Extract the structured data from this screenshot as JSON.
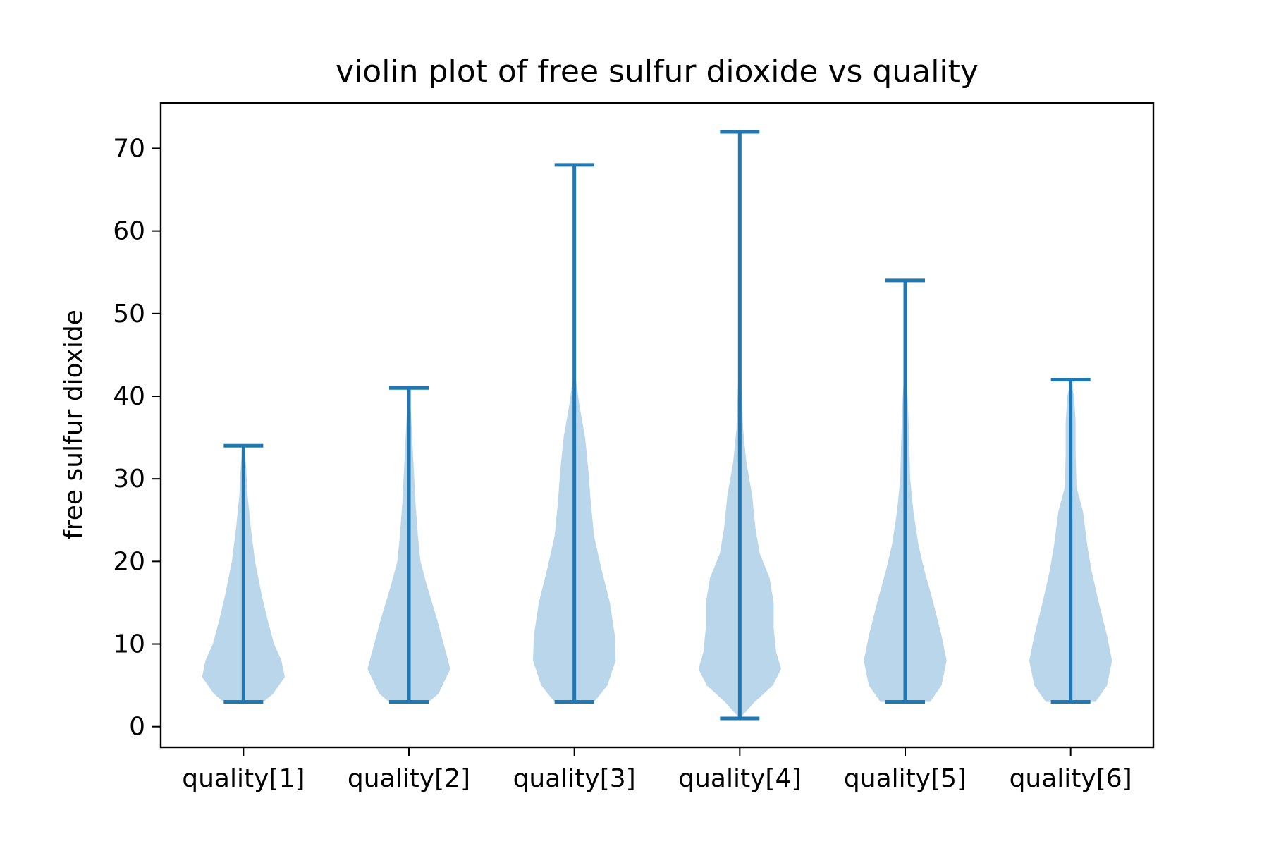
{
  "chart_data": {
    "type": "violin",
    "title": "violin plot of free sulfur dioxide vs quality",
    "xlabel": "",
    "ylabel": "free sulfur dioxide",
    "categories": [
      "quality[1]",
      "quality[2]",
      "quality[3]",
      "quality[4]",
      "quality[5]",
      "quality[6]"
    ],
    "y_ticks": [
      0,
      10,
      20,
      30,
      40,
      50,
      60,
      70
    ],
    "ylim": [
      -2.5,
      75.5
    ],
    "grid": false,
    "legend": "none",
    "colors": {
      "fill": "#bad6ea",
      "line": "#1f77b4",
      "axis": "#000000"
    },
    "violins": [
      {
        "category": "quality[1]",
        "min": 3,
        "max": 34,
        "profile": [
          [
            3,
            0.24
          ],
          [
            4,
            0.36
          ],
          [
            6,
            0.5
          ],
          [
            8,
            0.46
          ],
          [
            10,
            0.37
          ],
          [
            13,
            0.29
          ],
          [
            16,
            0.22
          ],
          [
            20,
            0.14
          ],
          [
            24,
            0.09
          ],
          [
            28,
            0.05
          ],
          [
            31,
            0.035
          ],
          [
            33,
            0.02
          ],
          [
            34,
            0.0
          ]
        ]
      },
      {
        "category": "quality[2]",
        "min": 3,
        "max": 41,
        "profile": [
          [
            3,
            0.24
          ],
          [
            4,
            0.36
          ],
          [
            7,
            0.5
          ],
          [
            10,
            0.42
          ],
          [
            13,
            0.34
          ],
          [
            17,
            0.22
          ],
          [
            20,
            0.14
          ],
          [
            23,
            0.11
          ],
          [
            27,
            0.08
          ],
          [
            31,
            0.06
          ],
          [
            35,
            0.04
          ],
          [
            38,
            0.025
          ],
          [
            41,
            0.0
          ]
        ]
      },
      {
        "category": "quality[3]",
        "min": 3,
        "max": 68,
        "profile": [
          [
            3,
            0.24
          ],
          [
            5,
            0.4
          ],
          [
            8,
            0.5
          ],
          [
            11,
            0.49
          ],
          [
            15,
            0.43
          ],
          [
            19,
            0.33
          ],
          [
            23,
            0.24
          ],
          [
            27,
            0.2
          ],
          [
            31,
            0.17
          ],
          [
            35,
            0.13
          ],
          [
            39,
            0.06
          ],
          [
            42,
            0.02
          ],
          [
            45,
            0.01
          ],
          [
            50,
            0.004
          ],
          [
            68,
            0.0
          ]
        ]
      },
      {
        "category": "quality[4]",
        "min": 1,
        "max": 72,
        "profile": [
          [
            1,
            0.0
          ],
          [
            3,
            0.18
          ],
          [
            5,
            0.4
          ],
          [
            7,
            0.5
          ],
          [
            9,
            0.44
          ],
          [
            12,
            0.41
          ],
          [
            15,
            0.41
          ],
          [
            18,
            0.36
          ],
          [
            21,
            0.24
          ],
          [
            24,
            0.19
          ],
          [
            28,
            0.15
          ],
          [
            32,
            0.08
          ],
          [
            36,
            0.04
          ],
          [
            42,
            0.02
          ],
          [
            48,
            0.005
          ],
          [
            72,
            0.0
          ]
        ]
      },
      {
        "category": "quality[5]",
        "min": 3,
        "max": 54,
        "profile": [
          [
            3,
            0.3
          ],
          [
            5,
            0.44
          ],
          [
            8,
            0.5
          ],
          [
            11,
            0.44
          ],
          [
            15,
            0.34
          ],
          [
            19,
            0.23
          ],
          [
            22,
            0.16
          ],
          [
            26,
            0.1
          ],
          [
            30,
            0.06
          ],
          [
            34,
            0.05
          ],
          [
            37,
            0.04
          ],
          [
            40,
            0.03
          ],
          [
            43,
            0.01
          ],
          [
            46,
            0.004
          ],
          [
            54,
            0.0
          ]
        ]
      },
      {
        "category": "quality[6]",
        "min": 3,
        "max": 42,
        "profile": [
          [
            3,
            0.3
          ],
          [
            5,
            0.44
          ],
          [
            8,
            0.5
          ],
          [
            11,
            0.44
          ],
          [
            15,
            0.34
          ],
          [
            19,
            0.25
          ],
          [
            22,
            0.2
          ],
          [
            26,
            0.15
          ],
          [
            29,
            0.07
          ],
          [
            33,
            0.06
          ],
          [
            37,
            0.06
          ],
          [
            40,
            0.04
          ],
          [
            42,
            0.0
          ]
        ]
      }
    ]
  }
}
